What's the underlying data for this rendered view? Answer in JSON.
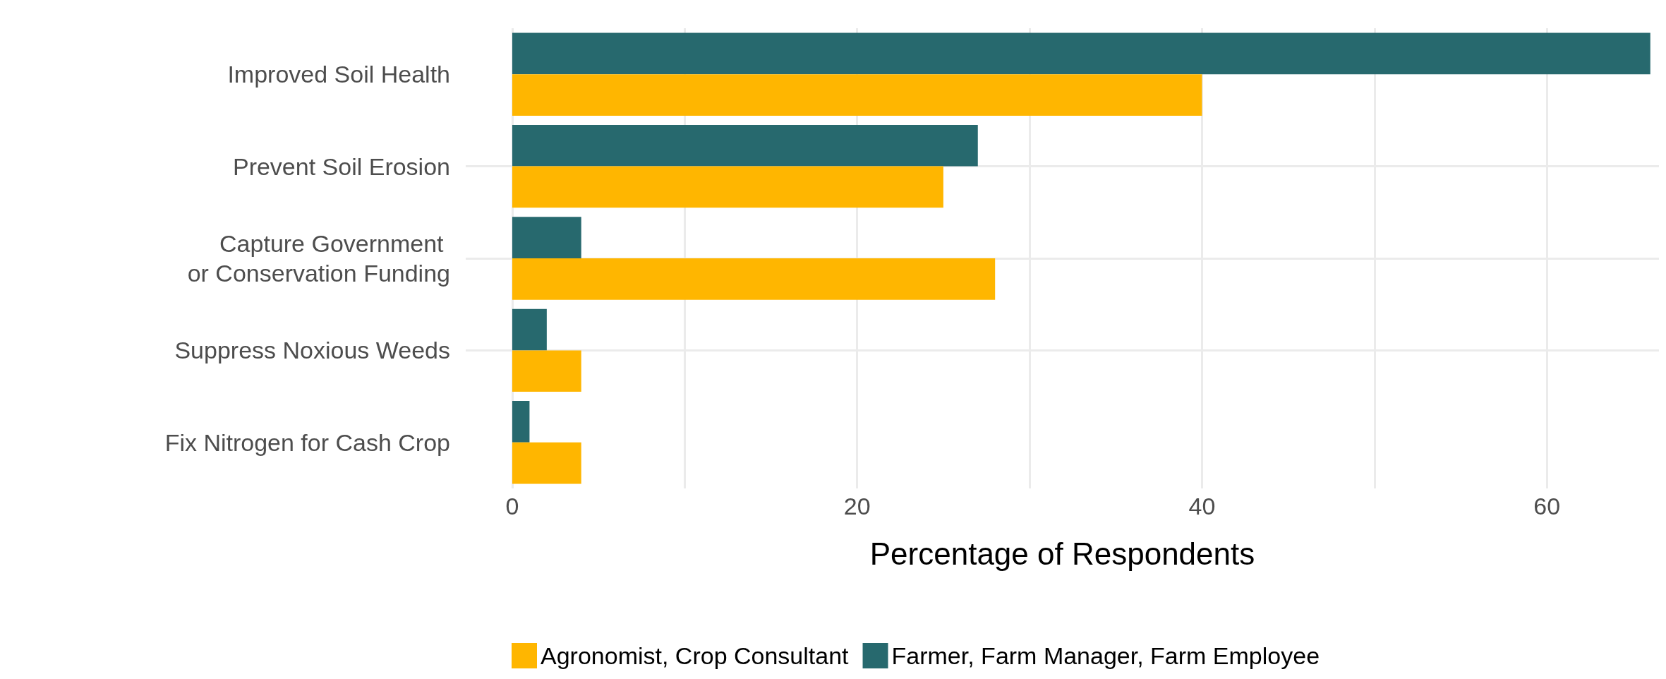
{
  "chart_data": {
    "type": "bar",
    "orientation": "horizontal",
    "categories": [
      "Improved Soil Health",
      "Prevent Soil Erosion",
      "Capture Government \nor Conservation Funding",
      "Suppress Noxious Weeds",
      "Fix Nitrogen for Cash Crop"
    ],
    "series": [
      {
        "name": "Agronomist, Crop Consultant",
        "color": "#ffb600",
        "values": [
          40,
          25,
          28,
          4,
          4
        ]
      },
      {
        "name": "Farmer, Farm Manager, Farm Employee",
        "color": "#27696e",
        "values": [
          66,
          27,
          4,
          2,
          1
        ]
      }
    ],
    "xlabel": "Percentage of Respondents",
    "xlim": [
      -2.7,
      66.5
    ],
    "xticks": [
      0,
      {
        "value": 10,
        "label": null
      },
      20,
      {
        "value": 30,
        "label": null
      },
      40,
      {
        "value": 50,
        "label": null
      },
      60
    ],
    "grid": true,
    "legend": "bottom"
  }
}
